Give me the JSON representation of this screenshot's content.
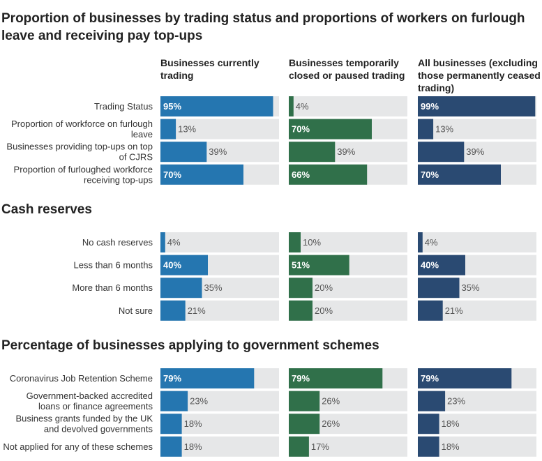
{
  "title": "Proportion of businesses by trading status and proportions of workers on furlough leave and receiving pay top-ups",
  "column_headers": [
    "Businesses currently trading",
    "Businesses temporarily closed or paused trading",
    "All businesses (excluding those permanently ceased trading)"
  ],
  "colors": {
    "currently_trading": "#2576b0",
    "temporarily_closed": "#30704a",
    "all_businesses": "#2a4a72",
    "track": "#e6e7e8"
  },
  "chart_data": [
    {
      "type": "bar",
      "title": "",
      "categories": [
        [
          "Trading Status"
        ],
        [
          "Proportion of workforce on furlough",
          "leave"
        ],
        [
          "Businesses providing top-ups on top",
          "of CJRS"
        ],
        [
          "Proportion of furloughed workforce",
          "receiving top-ups"
        ]
      ],
      "series": [
        {
          "name": "Businesses currently trading",
          "values": [
            95,
            13,
            39,
            70
          ]
        },
        {
          "name": "Businesses temporarily closed or paused trading",
          "values": [
            4,
            70,
            39,
            66
          ]
        },
        {
          "name": "All businesses (excluding those permanently ceased trading)",
          "values": [
            99,
            13,
            39,
            70
          ]
        }
      ],
      "ylim": [
        0,
        100
      ]
    },
    {
      "type": "bar",
      "title": "Cash reserves",
      "categories": [
        [
          "No cash reserves"
        ],
        [
          "Less than 6 months"
        ],
        [
          "More than 6 months"
        ],
        [
          "Not sure"
        ]
      ],
      "series": [
        {
          "name": "Businesses currently trading",
          "values": [
            4,
            40,
            35,
            21
          ]
        },
        {
          "name": "Businesses temporarily closed or paused trading",
          "values": [
            10,
            51,
            20,
            20
          ]
        },
        {
          "name": "All businesses (excluding those permanently ceased trading)",
          "values": [
            4,
            40,
            35,
            21
          ]
        }
      ],
      "ylim": [
        0,
        100
      ]
    },
    {
      "type": "bar",
      "title": "Percentage of businesses applying to government schemes",
      "categories": [
        [
          "Coronavirus Job Retention Scheme"
        ],
        [
          "Government-backed accredited",
          "loans or finance agreements"
        ],
        [
          "Business grants funded by the UK",
          "and devolved governments"
        ],
        [
          "Not applied for any of these schemes"
        ]
      ],
      "series": [
        {
          "name": "Businesses currently trading",
          "values": [
            79,
            23,
            18,
            18
          ]
        },
        {
          "name": "Businesses temporarily closed or paused trading",
          "values": [
            79,
            26,
            26,
            17
          ]
        },
        {
          "name": "All businesses (excluding those permanently ceased trading)",
          "values": [
            79,
            23,
            18,
            18
          ]
        }
      ],
      "ylim": [
        0,
        100
      ]
    }
  ]
}
